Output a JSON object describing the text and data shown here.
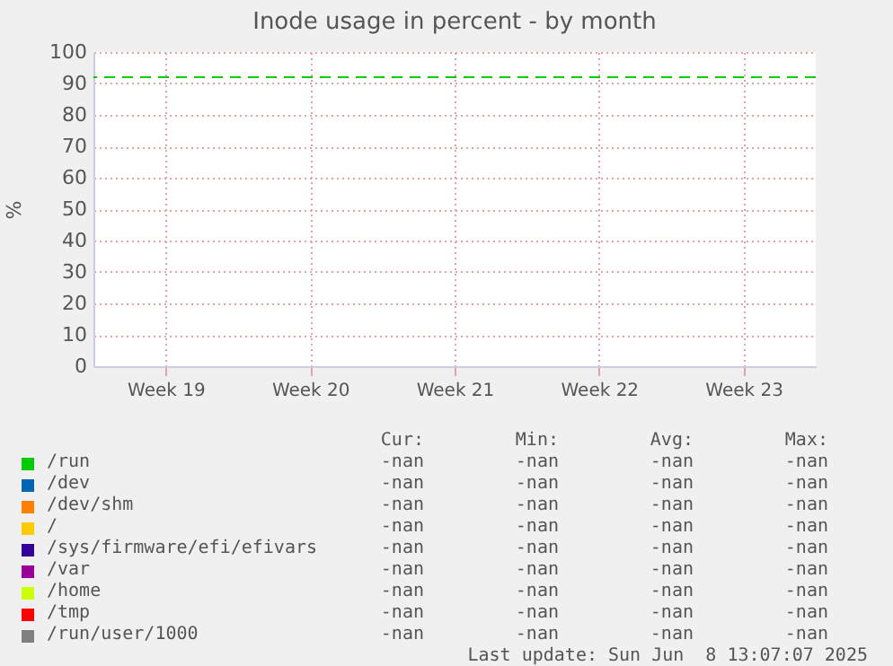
{
  "chart_data": {
    "type": "line",
    "title": "Inode usage in percent - by month",
    "ylabel": "%",
    "categories": [
      "Week 19",
      "Week 20",
      "Week 21",
      "Week 22",
      "Week 23"
    ],
    "series": [
      {
        "name": "/run",
        "color": "#00cc00",
        "values": [
          null,
          null,
          null,
          null,
          null
        ]
      },
      {
        "name": "/dev",
        "color": "#0066b3",
        "values": [
          null,
          null,
          null,
          null,
          null
        ]
      },
      {
        "name": "/dev/shm",
        "color": "#ff8000",
        "values": [
          null,
          null,
          null,
          null,
          null
        ]
      },
      {
        "name": "/",
        "color": "#ffcc00",
        "values": [
          null,
          null,
          null,
          null,
          null
        ]
      },
      {
        "name": "/sys/firmware/efi/efivars",
        "color": "#330099",
        "values": [
          null,
          null,
          null,
          null,
          null
        ]
      },
      {
        "name": "/var",
        "color": "#990099",
        "values": [
          null,
          null,
          null,
          null,
          null
        ]
      },
      {
        "name": "/home",
        "color": "#ccff00",
        "values": [
          null,
          null,
          null,
          null,
          null
        ]
      },
      {
        "name": "/tmp",
        "color": "#ff0000",
        "values": [
          null,
          null,
          null,
          null,
          null
        ]
      },
      {
        "name": "/run/user/1000",
        "color": "#808080",
        "values": [
          null,
          null,
          null,
          null,
          null
        ]
      }
    ],
    "ylim": [
      0,
      100
    ],
    "yticks": [
      0,
      10,
      20,
      30,
      40,
      50,
      60,
      70,
      80,
      90,
      100
    ],
    "grid": true,
    "legend": "bottom",
    "ref_lines": [
      {
        "axis": "y",
        "value": 92,
        "color": "#00cc00",
        "line_style": "dashed"
      }
    ],
    "annotations": [
      "Cur:",
      "Min:",
      "Avg:",
      "Max:",
      "-nan",
      "-nan",
      "-nan",
      "-nan",
      "-nan",
      "-nan",
      "-nan",
      "-nan",
      "-nan",
      "-nan",
      "-nan",
      "-nan",
      "-nan",
      "-nan",
      "-nan",
      "-nan",
      "-nan",
      "-nan",
      "-nan",
      "-nan",
      "-nan",
      "-nan",
      "-nan",
      "-nan",
      "-nan",
      "-nan",
      "-nan",
      "-nan",
      "-nan",
      "-nan",
      "-nan",
      "-nan",
      "-nan",
      "-nan",
      "-nan",
      "-nan",
      "Last update: Sun Jun  8 13:07:07 2025"
    ]
  }
}
